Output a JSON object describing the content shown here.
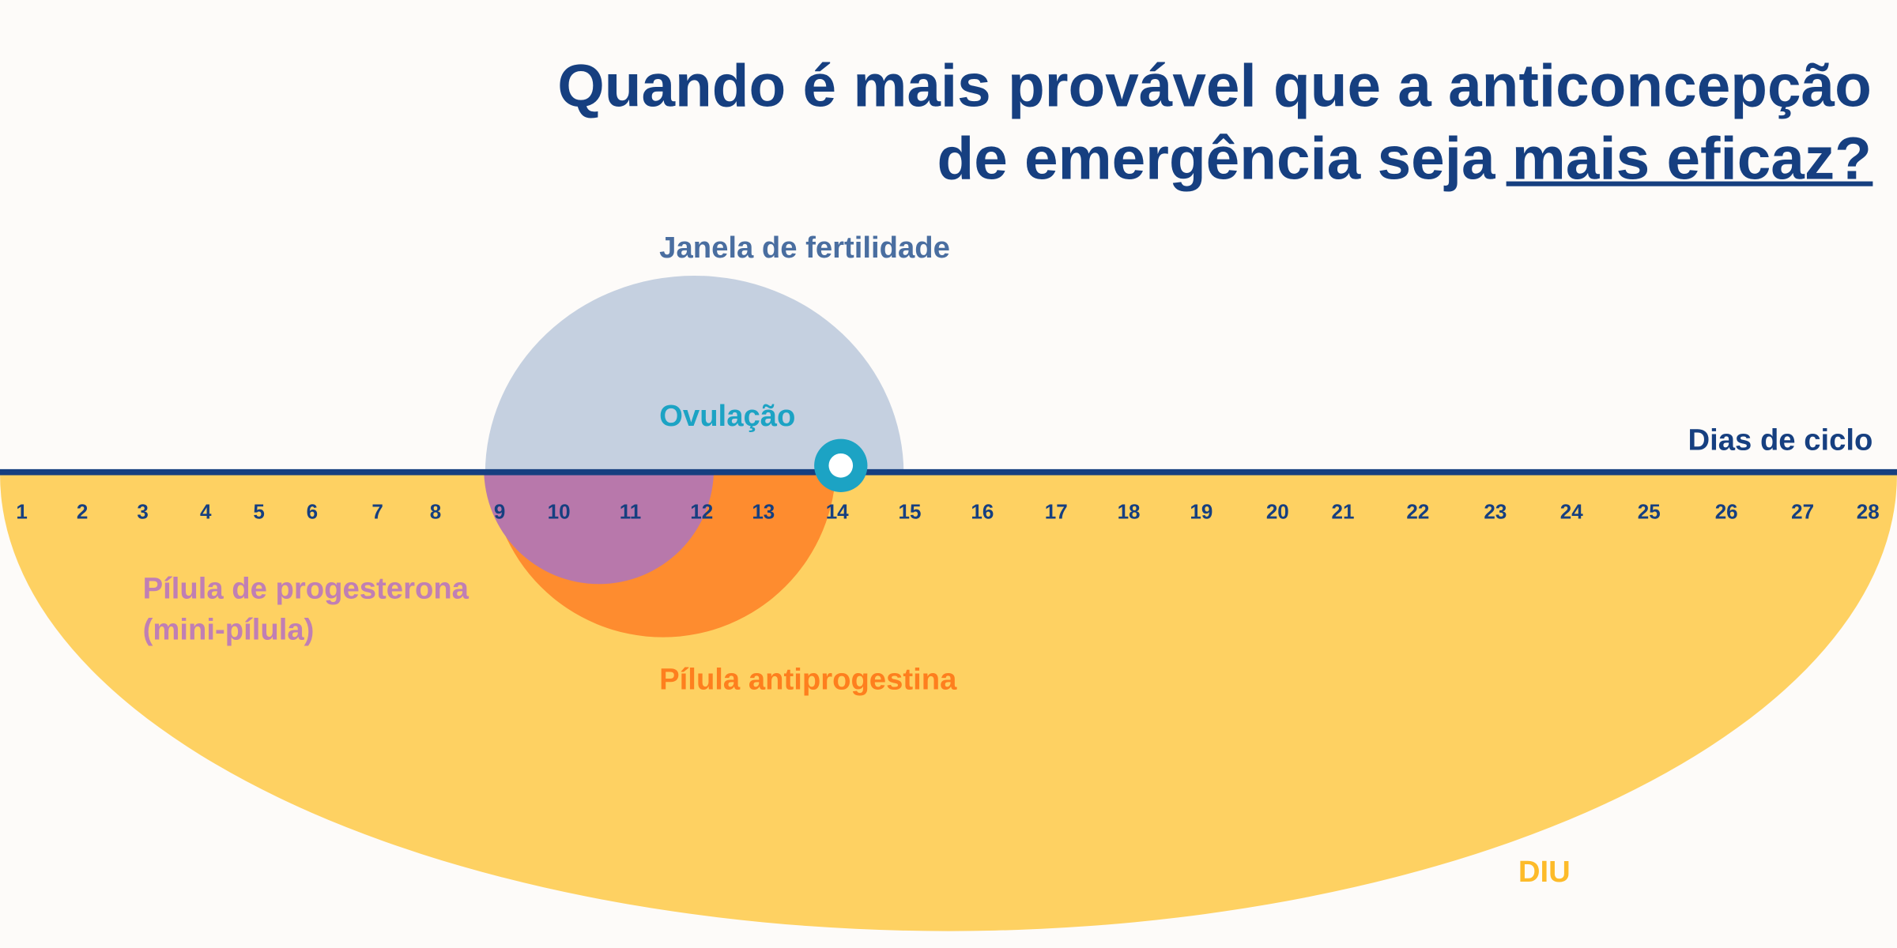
{
  "title": {
    "line1": "Quando é mais provável que a anticoncepção",
    "line2_plain": "de emergência seja ",
    "line2_emphasis": "mais eficaz?"
  },
  "labels": {
    "fertile_window": "Janela de fertilidade",
    "ovulation": "Ovulação",
    "cycle_days": "Dias de ciclo",
    "progesterone_pill_line1": "Pílula de progesterona",
    "progesterone_pill_line2": "(mini-pílula)",
    "antiprogestin_pill": "Pílula antiprogestina",
    "iud": "DIU"
  },
  "days": [
    "1",
    "2",
    "3",
    "4",
    "5",
    "6",
    "7",
    "8",
    "9",
    "10",
    "11",
    "12",
    "13",
    "14",
    "15",
    "16",
    "17",
    "18",
    "19",
    "20",
    "21",
    "22",
    "23",
    "24",
    "25",
    "26",
    "27",
    "28"
  ],
  "colors": {
    "background": "#fdfbf9",
    "navy": "#163f80",
    "fertile_window": "#c5d0e0",
    "fertile_label": "#4a6ea0",
    "iud": "#fed162",
    "iud_label": "#fdbb2a",
    "antiprogestin": "#fe8c2f",
    "progesterone": "#b878ab",
    "progesterone_label": "#c07fb4",
    "ovulation": "#1ca3c4"
  }
}
